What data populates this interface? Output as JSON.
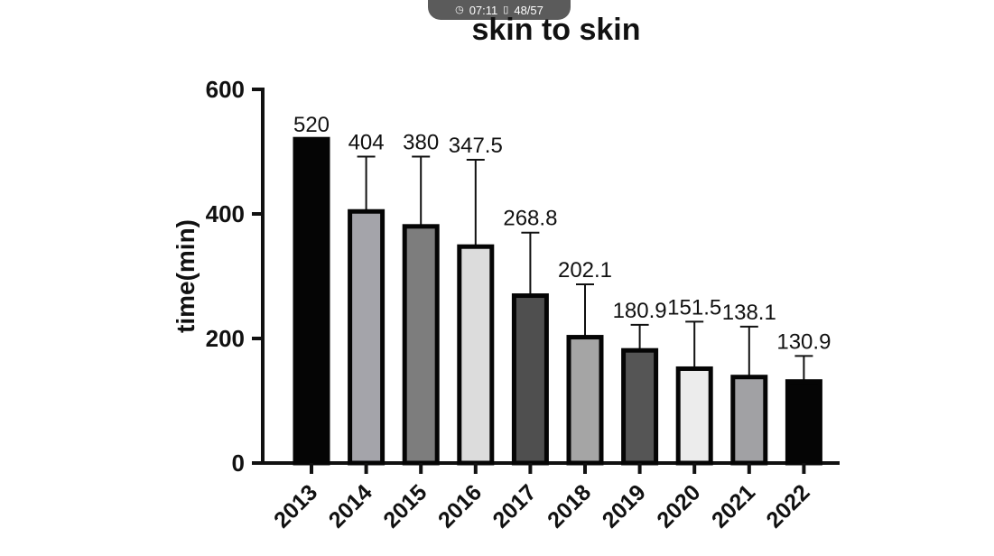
{
  "status_bar": {
    "time": "07:11",
    "page": "48/57",
    "clock_icon": "clock-icon",
    "page_icon": "page-icon"
  },
  "chart_data": {
    "type": "bar",
    "title": "skin to skin",
    "xlabel": "",
    "ylabel": "time(min)",
    "ylim": [
      0,
      600
    ],
    "yticks": [
      0,
      200,
      400,
      600
    ],
    "categories": [
      "2013",
      "2014",
      "2015",
      "2016",
      "2017",
      "2018",
      "2019",
      "2020",
      "2021",
      "2022"
    ],
    "values": [
      520,
      404,
      380,
      347.5,
      268.8,
      202.1,
      180.9,
      151.5,
      138.1,
      130.9
    ],
    "value_labels": [
      "520",
      "404",
      "380",
      "347.5",
      "268.8",
      "202.1",
      "180.9",
      "151.5",
      "138.1",
      "130.9"
    ],
    "error_upper": [
      0,
      492,
      492,
      487,
      370,
      287,
      222,
      227,
      219,
      172
    ],
    "bar_colors": [
      "#050505",
      "#a4a4aa",
      "#7d7d7d",
      "#dcdcdc",
      "#4f4f4f",
      "#a5a5a5",
      "#555555",
      "#ececec",
      "#a1a1a4",
      "#050505"
    ],
    "grid": false,
    "legend": "none"
  }
}
